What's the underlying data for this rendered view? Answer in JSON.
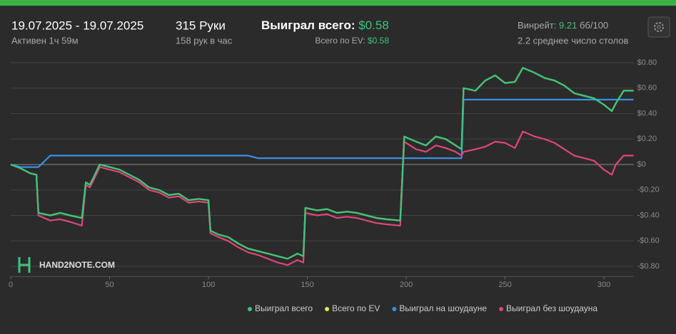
{
  "header": {
    "date_range": "19.07.2025 - 19.07.2025",
    "active": "Активен 1ч 59м",
    "hands": "315 Руки",
    "hands_per_hour": "158 рук в час",
    "won_label": "Выиграл всего:",
    "won_value": "$0.58",
    "ev_label": "Всего по EV:",
    "ev_value": "$0.58",
    "winrate_label": "Винрейт:",
    "winrate_value": "9.21",
    "winrate_unit": "бб/100",
    "tables": "2.2 среднее число столов"
  },
  "watermark": "HAND2NOTE.COM",
  "chart_data": {
    "type": "line",
    "x": [
      0,
      5,
      10,
      13,
      14,
      20,
      25,
      30,
      36,
      38,
      40,
      42,
      45,
      50,
      55,
      60,
      65,
      70,
      75,
      80,
      85,
      90,
      95,
      100,
      101,
      105,
      110,
      115,
      120,
      125,
      130,
      135,
      140,
      145,
      148,
      149,
      155,
      160,
      165,
      170,
      175,
      180,
      185,
      190,
      197,
      199,
      205,
      210,
      215,
      220,
      225,
      228,
      229,
      235,
      240,
      245,
      250,
      255,
      259,
      265,
      270,
      275,
      280,
      285,
      290,
      295,
      300,
      304,
      306,
      310,
      315
    ],
    "series": [
      {
        "name": "Всего по EV",
        "color": "#e8e84a",
        "values": [
          0,
          -0.03,
          -0.07,
          -0.08,
          -0.38,
          -0.4,
          -0.38,
          -0.4,
          -0.42,
          -0.14,
          -0.16,
          -0.1,
          0.0,
          -0.02,
          -0.04,
          -0.08,
          -0.12,
          -0.18,
          -0.2,
          -0.24,
          -0.23,
          -0.28,
          -0.27,
          -0.28,
          -0.52,
          -0.55,
          -0.57,
          -0.62,
          -0.66,
          -0.68,
          -0.7,
          -0.72,
          -0.74,
          -0.7,
          -0.72,
          -0.34,
          -0.36,
          -0.35,
          -0.38,
          -0.37,
          -0.38,
          -0.4,
          -0.42,
          -0.43,
          -0.44,
          0.22,
          0.18,
          0.15,
          0.22,
          0.2,
          0.15,
          0.12,
          0.6,
          0.58,
          0.66,
          0.7,
          0.64,
          0.65,
          0.76,
          0.72,
          0.68,
          0.66,
          0.62,
          0.56,
          0.54,
          0.52,
          0.47,
          0.42,
          0.48,
          0.58,
          0.58
        ]
      },
      {
        "name": "Выиграл на шоудауне",
        "color": "#3a8ee6",
        "values": [
          0,
          -0.02,
          -0.02,
          -0.02,
          -0.02,
          0.07,
          0.07,
          0.07,
          0.07,
          0.07,
          0.07,
          0.07,
          0.07,
          0.07,
          0.07,
          0.07,
          0.07,
          0.07,
          0.07,
          0.07,
          0.07,
          0.07,
          0.07,
          0.07,
          0.07,
          0.07,
          0.07,
          0.07,
          0.07,
          0.05,
          0.05,
          0.05,
          0.05,
          0.05,
          0.05,
          0.05,
          0.05,
          0.05,
          0.05,
          0.05,
          0.05,
          0.05,
          0.05,
          0.05,
          0.05,
          0.05,
          0.05,
          0.05,
          0.05,
          0.05,
          0.05,
          0.05,
          0.51,
          0.51,
          0.51,
          0.51,
          0.51,
          0.51,
          0.51,
          0.51,
          0.51,
          0.51,
          0.51,
          0.51,
          0.51,
          0.51,
          0.51,
          0.51,
          0.51,
          0.51,
          0.51
        ]
      },
      {
        "name": "Выиграл без шоудауна",
        "color": "#e0457b",
        "values": [
          0,
          -0.03,
          -0.07,
          -0.08,
          -0.4,
          -0.44,
          -0.43,
          -0.45,
          -0.48,
          -0.16,
          -0.18,
          -0.12,
          -0.02,
          -0.04,
          -0.06,
          -0.1,
          -0.14,
          -0.2,
          -0.22,
          -0.26,
          -0.25,
          -0.3,
          -0.29,
          -0.3,
          -0.54,
          -0.57,
          -0.6,
          -0.65,
          -0.69,
          -0.71,
          -0.74,
          -0.77,
          -0.79,
          -0.75,
          -0.77,
          -0.38,
          -0.4,
          -0.39,
          -0.42,
          -0.41,
          -0.42,
          -0.44,
          -0.46,
          -0.47,
          -0.48,
          0.18,
          0.12,
          0.1,
          0.15,
          0.13,
          0.1,
          0.07,
          0.1,
          0.12,
          0.14,
          0.18,
          0.17,
          0.13,
          0.26,
          0.22,
          0.2,
          0.17,
          0.12,
          0.07,
          0.05,
          0.03,
          -0.04,
          -0.08,
          0.0,
          0.07,
          0.07
        ]
      },
      {
        "name": "Выиграл всего",
        "color": "#3cc47c",
        "values": [
          0,
          -0.03,
          -0.07,
          -0.08,
          -0.38,
          -0.4,
          -0.38,
          -0.4,
          -0.42,
          -0.14,
          -0.16,
          -0.1,
          0.0,
          -0.02,
          -0.04,
          -0.08,
          -0.12,
          -0.18,
          -0.2,
          -0.24,
          -0.23,
          -0.28,
          -0.27,
          -0.28,
          -0.52,
          -0.55,
          -0.57,
          -0.62,
          -0.66,
          -0.68,
          -0.7,
          -0.72,
          -0.74,
          -0.7,
          -0.72,
          -0.34,
          -0.36,
          -0.35,
          -0.38,
          -0.37,
          -0.38,
          -0.4,
          -0.42,
          -0.43,
          -0.44,
          0.22,
          0.18,
          0.15,
          0.22,
          0.2,
          0.15,
          0.12,
          0.6,
          0.58,
          0.66,
          0.7,
          0.64,
          0.65,
          0.76,
          0.72,
          0.68,
          0.66,
          0.62,
          0.56,
          0.54,
          0.52,
          0.47,
          0.42,
          0.48,
          0.58,
          0.58
        ]
      }
    ],
    "legend_order": [
      3,
      0,
      1,
      2
    ],
    "xlim": [
      0,
      315
    ],
    "xticks": [
      0,
      50,
      100,
      150,
      200,
      250,
      300
    ],
    "ylim": [
      -0.88,
      0.84
    ],
    "yticks": [
      {
        "value": 0.8,
        "label": "$0.80"
      },
      {
        "value": 0.6,
        "label": "$0.60"
      },
      {
        "value": 0.4,
        "label": "$0.40"
      },
      {
        "value": 0.2,
        "label": "$0.20"
      },
      {
        "value": 0,
        "label": "$0"
      },
      {
        "value": -0.2,
        "label": "-$0.20"
      },
      {
        "value": -0.4,
        "label": "-$0.40"
      },
      {
        "value": -0.6,
        "label": "-$0.60"
      },
      {
        "value": -0.8,
        "label": "-$0.80"
      }
    ],
    "grid": true
  }
}
